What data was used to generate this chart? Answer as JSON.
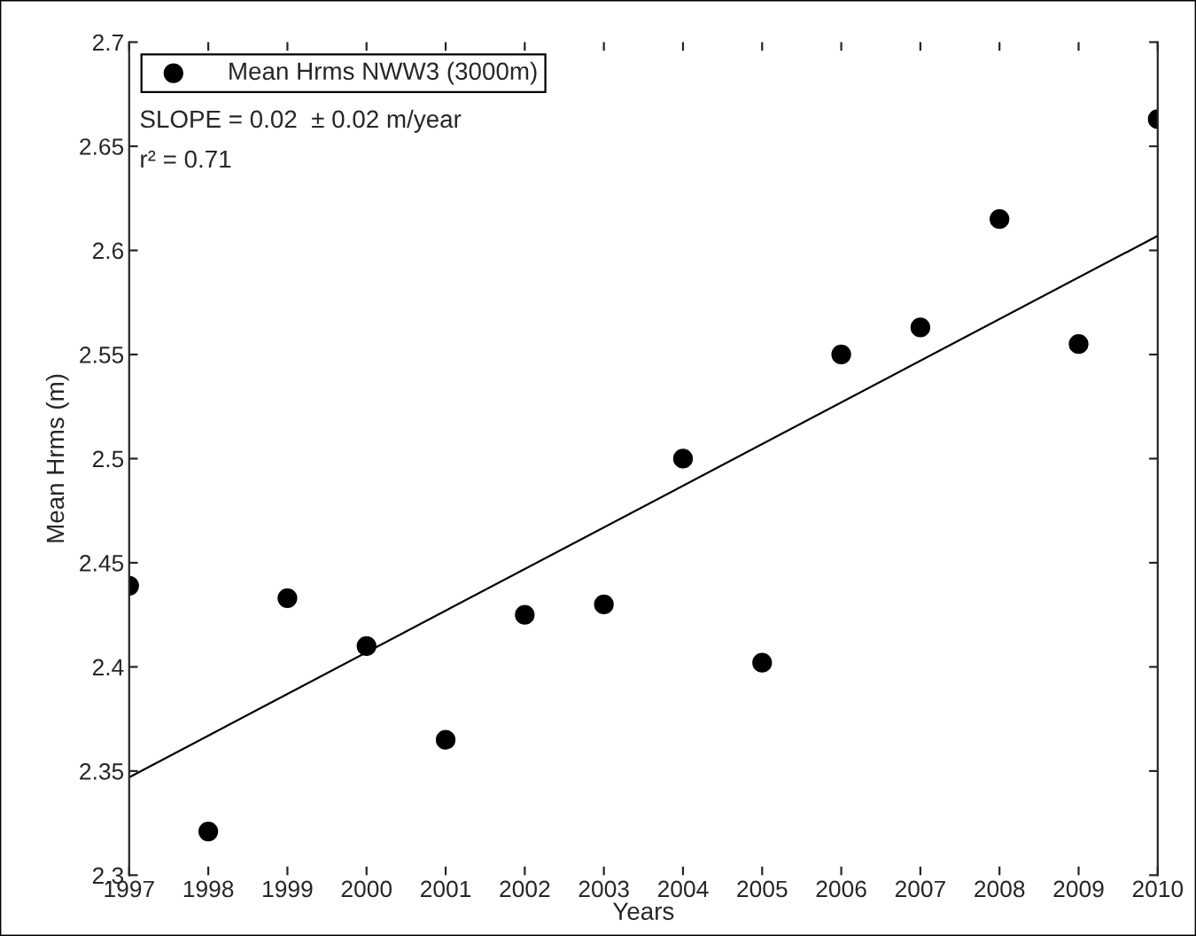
{
  "chart_data": {
    "type": "scatter",
    "xlabel": "Years",
    "ylabel": "Mean Hrms (m)",
    "x": [
      1997,
      1998,
      1999,
      2000,
      2001,
      2002,
      2003,
      2004,
      2005,
      2006,
      2007,
      2008,
      2009,
      2010
    ],
    "series": [
      {
        "name": "Mean Hrms NWW3 (3000m)",
        "color": "#000000",
        "marker": "circle",
        "values": [
          2.439,
          2.321,
          2.433,
          2.41,
          2.365,
          2.425,
          2.43,
          2.5,
          2.402,
          2.55,
          2.563,
          2.615,
          2.555,
          2.663
        ]
      },
      {
        "type": "line",
        "color": "#000000",
        "marker": "none",
        "x": [
          1997,
          2010
        ],
        "values": [
          2.347,
          2.607
        ]
      }
    ],
    "annotations": [
      "SLOPE = 0.02  ± 0.02 m/year",
      "r² = 0.71"
    ],
    "xlim": [
      1997,
      2010
    ],
    "xticks": [
      1997,
      1998,
      1999,
      2000,
      2001,
      2002,
      2003,
      2004,
      2005,
      2006,
      2007,
      2008,
      2009,
      2010
    ],
    "ylim": [
      2.3,
      2.7
    ],
    "yticks": [
      2.3,
      2.35,
      2.4,
      2.45,
      2.5,
      2.55,
      2.6,
      2.65,
      2.7
    ],
    "legend": "top left",
    "grid": false
  }
}
